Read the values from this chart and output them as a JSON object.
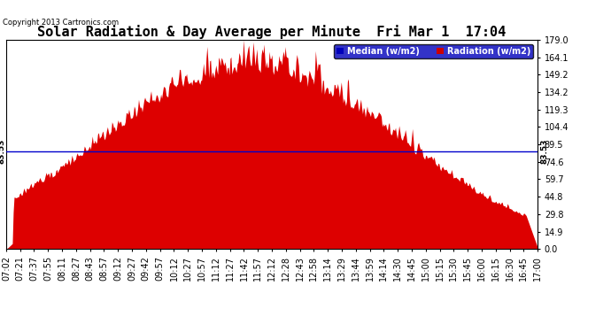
{
  "title": "Solar Radiation & Day Average per Minute  Fri Mar 1  17:04",
  "copyright": "Copyright 2013 Cartronics.com",
  "median_value": 83.53,
  "ymin": 0.0,
  "ymax": 179.0,
  "yticks": [
    0.0,
    14.9,
    29.8,
    44.8,
    59.7,
    74.6,
    89.5,
    104.4,
    119.3,
    134.2,
    149.2,
    164.1,
    179.0
  ],
  "ytick_labels": [
    "0.0",
    "14.9",
    "29.8",
    "44.8",
    "59.7",
    "74.6",
    "89.5",
    "104.4",
    "119.3",
    "134.2",
    "149.2",
    "164.1",
    "179.0"
  ],
  "legend_median_color": "#0000bb",
  "legend_radiation_color": "#cc0000",
  "fill_color": "#dd0000",
  "median_line_color": "#0000cc",
  "background_color": "#ffffff",
  "grid_color": "#cccccc",
  "title_fontsize": 11,
  "tick_fontsize": 7,
  "xtick_labels": [
    "07:02",
    "07:21",
    "07:37",
    "07:55",
    "08:11",
    "08:27",
    "08:43",
    "08:57",
    "09:12",
    "09:27",
    "09:42",
    "09:57",
    "10:12",
    "10:27",
    "10:57",
    "11:12",
    "11:27",
    "11:42",
    "11:57",
    "12:12",
    "12:28",
    "12:43",
    "12:58",
    "13:14",
    "13:29",
    "13:44",
    "13:59",
    "14:14",
    "14:30",
    "14:45",
    "15:00",
    "15:15",
    "15:30",
    "15:45",
    "16:00",
    "16:15",
    "16:30",
    "16:45",
    "17:00"
  ]
}
